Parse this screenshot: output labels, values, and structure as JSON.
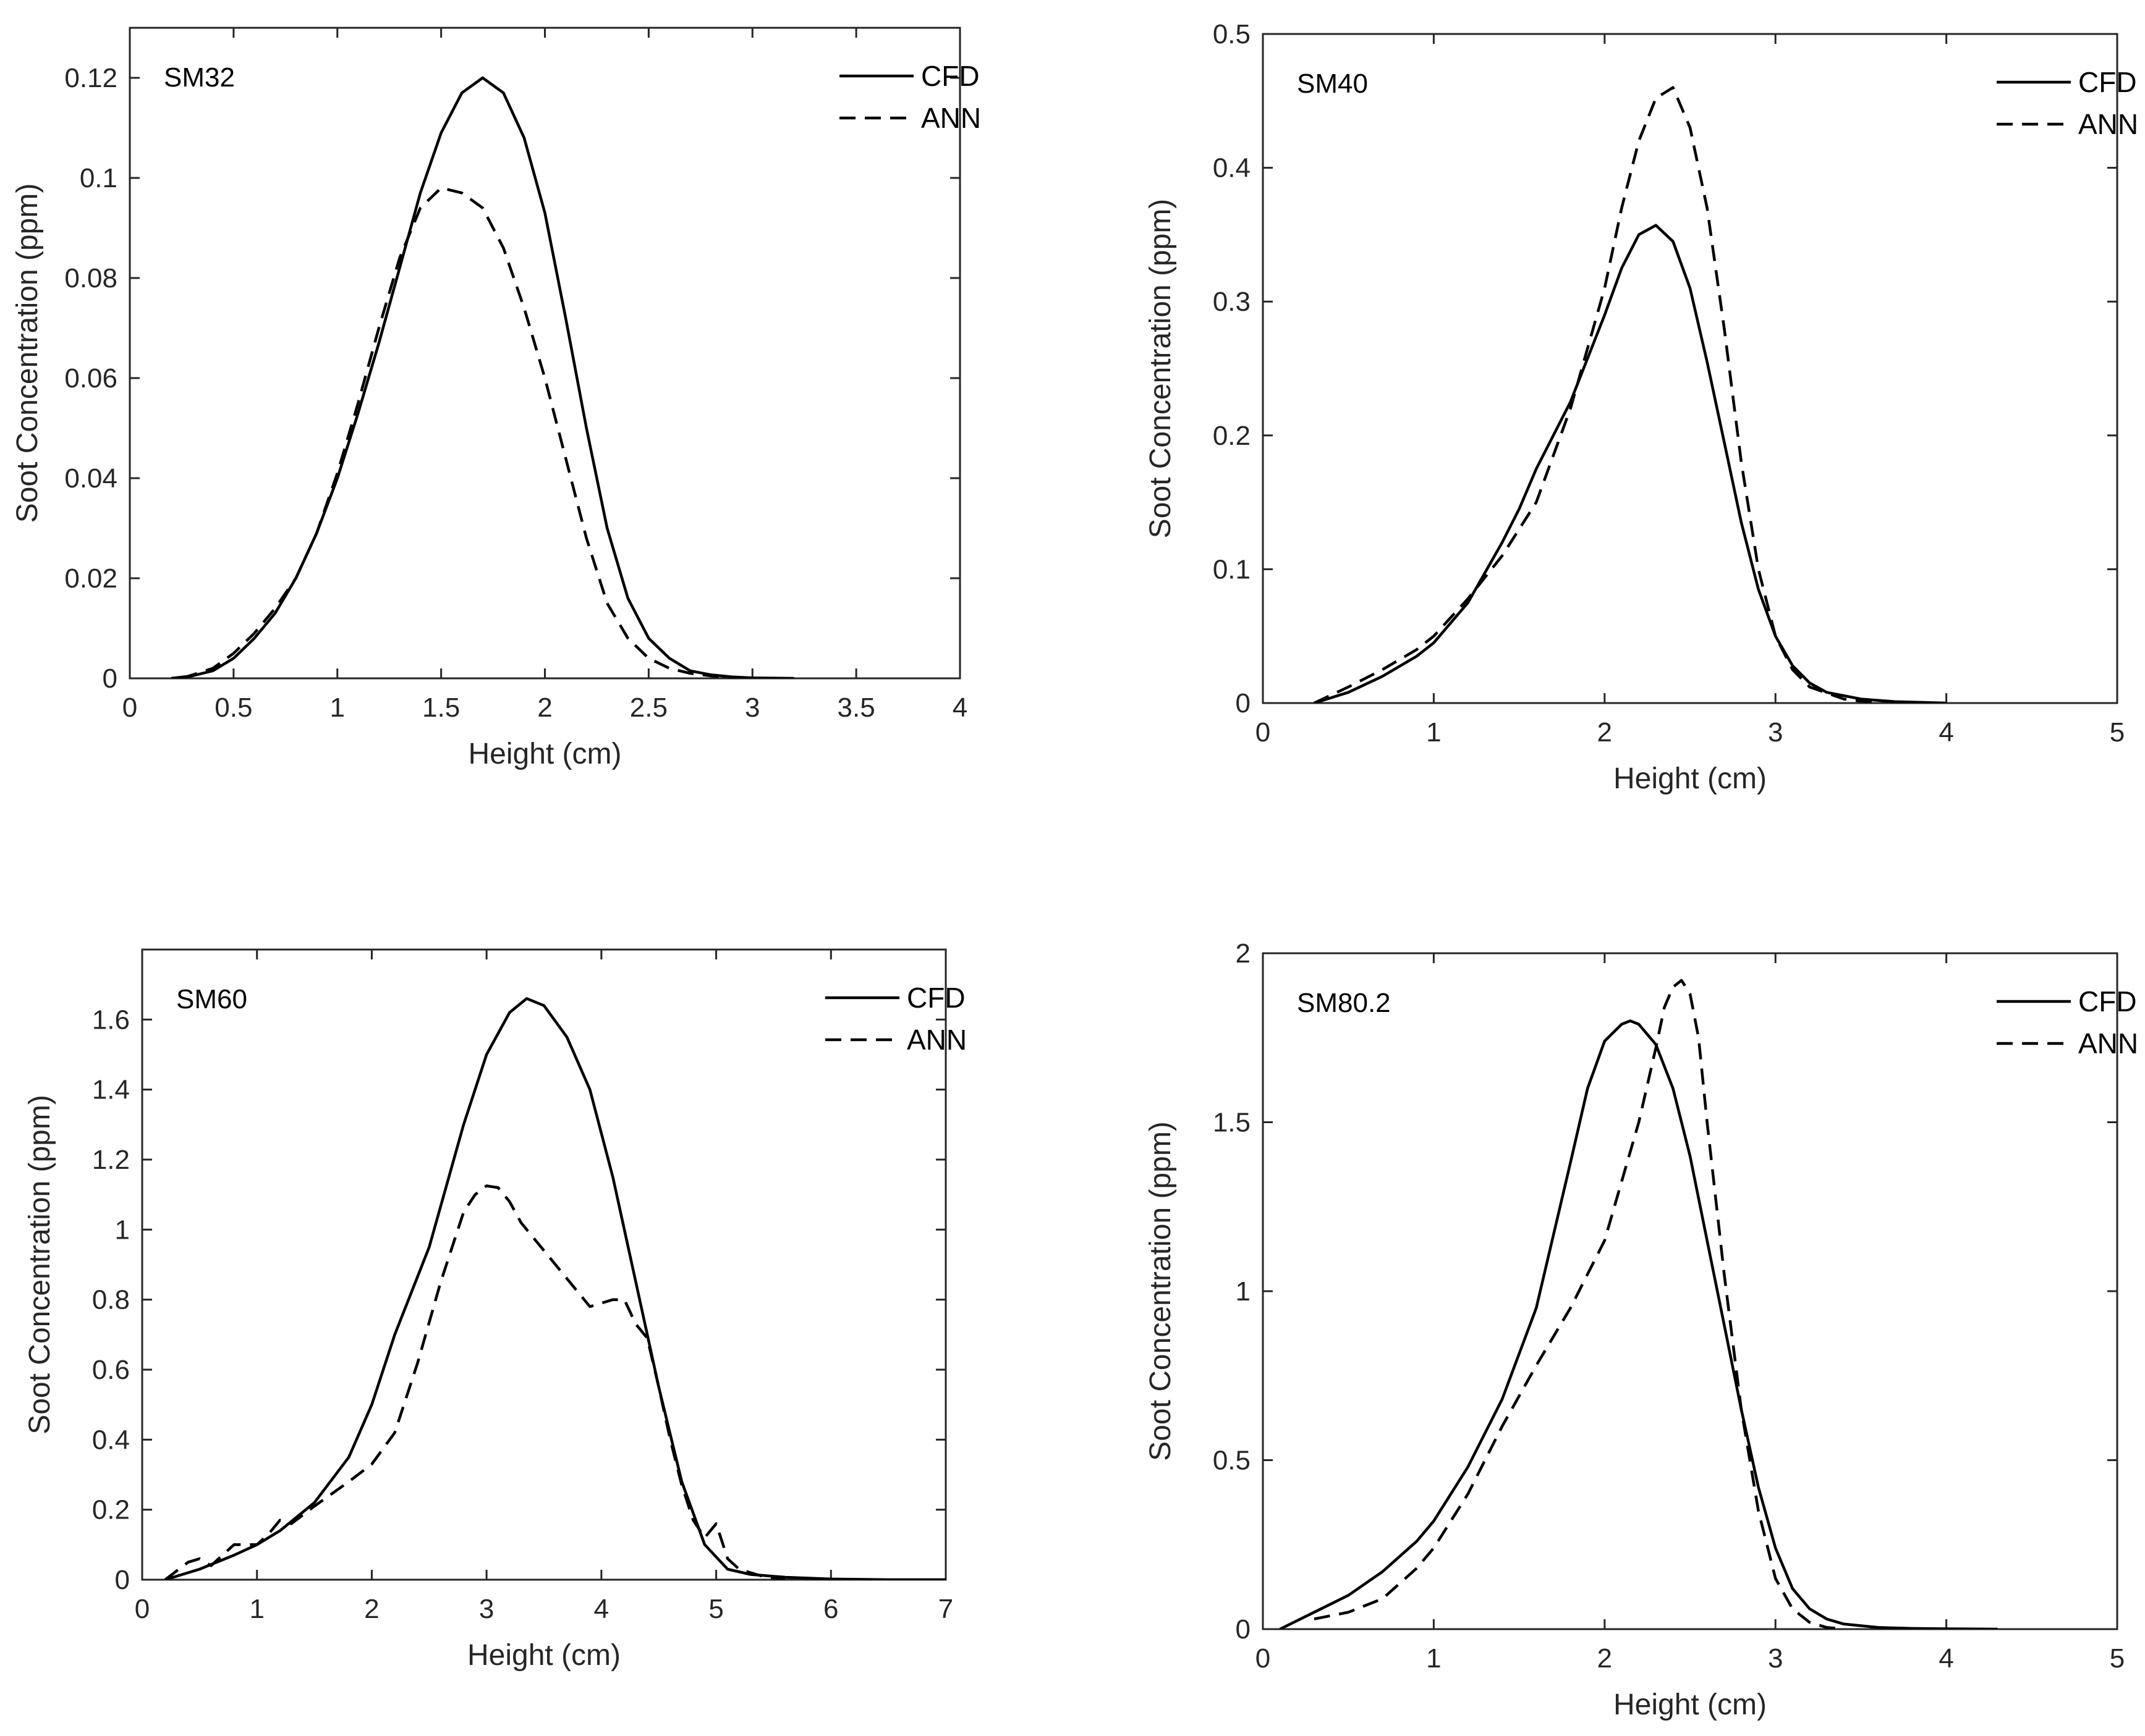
{
  "chart_data": [
    {
      "type": "line",
      "title": "SM32",
      "xlabel": "Height (cm)",
      "ylabel": "Soot Concentration (ppm)",
      "xlim": [
        0,
        4
      ],
      "ylim": [
        0,
        0.13
      ],
      "xticks": [
        0,
        0.5,
        1,
        1.5,
        2,
        2.5,
        3,
        3.5,
        4
      ],
      "xtick_labels": [
        "0",
        "0.5",
        "1",
        "1.5",
        "2",
        "2.5",
        "3",
        "3.5",
        "4"
      ],
      "yticks": [
        0,
        0.02,
        0.04,
        0.06,
        0.08,
        0.1,
        0.12
      ],
      "ytick_labels": [
        "0",
        "0.02",
        "0.04",
        "0.06",
        "0.08",
        "0.1",
        "0.12"
      ],
      "legend": "top-right",
      "series": [
        {
          "name": "CFD",
          "style": "solid",
          "x": [
            0.2,
            0.3,
            0.4,
            0.5,
            0.6,
            0.7,
            0.8,
            0.9,
            1.0,
            1.1,
            1.2,
            1.3,
            1.4,
            1.5,
            1.6,
            1.7,
            1.8,
            1.9,
            2.0,
            2.1,
            2.2,
            2.3,
            2.4,
            2.5,
            2.6,
            2.7,
            2.8,
            2.9,
            3.0,
            3.2
          ],
          "y": [
            0,
            0.0005,
            0.0015,
            0.004,
            0.008,
            0.013,
            0.02,
            0.029,
            0.04,
            0.053,
            0.067,
            0.082,
            0.097,
            0.109,
            0.117,
            0.12,
            0.117,
            0.108,
            0.093,
            0.072,
            0.05,
            0.03,
            0.016,
            0.008,
            0.004,
            0.0015,
            0.0007,
            0.0003,
            0.0001,
            0
          ]
        },
        {
          "name": "ANN",
          "style": "dashed",
          "x": [
            0.25,
            0.4,
            0.5,
            0.6,
            0.7,
            0.8,
            0.9,
            1.0,
            1.1,
            1.2,
            1.3,
            1.4,
            1.5,
            1.6,
            1.7,
            1.8,
            1.9,
            2.0,
            2.1,
            2.2,
            2.3,
            2.4,
            2.5,
            2.6,
            2.7,
            2.8,
            2.9
          ],
          "y": [
            0,
            0.002,
            0.005,
            0.009,
            0.014,
            0.02,
            0.029,
            0.041,
            0.055,
            0.07,
            0.084,
            0.094,
            0.098,
            0.097,
            0.094,
            0.086,
            0.074,
            0.06,
            0.044,
            0.028,
            0.015,
            0.008,
            0.004,
            0.002,
            0.001,
            0.0005,
            0.0002
          ]
        }
      ]
    },
    {
      "type": "line",
      "title": "SM40",
      "xlabel": "Height (cm)",
      "ylabel": "Soot Concentration (ppm)",
      "xlim": [
        0,
        5
      ],
      "ylim": [
        0,
        0.5
      ],
      "xticks": [
        0,
        1,
        2,
        3,
        4,
        5
      ],
      "xtick_labels": [
        "0",
        "1",
        "2",
        "3",
        "4",
        "5"
      ],
      "yticks": [
        0,
        0.1,
        0.2,
        0.3,
        0.4,
        0.5
      ],
      "ytick_labels": [
        "0",
        "0.1",
        "0.2",
        "0.3",
        "0.4",
        "0.5"
      ],
      "legend": "top-right",
      "series": [
        {
          "name": "CFD",
          "style": "solid",
          "x": [
            0.3,
            0.5,
            0.7,
            0.9,
            1.0,
            1.2,
            1.4,
            1.5,
            1.6,
            1.8,
            2.0,
            2.1,
            2.2,
            2.3,
            2.4,
            2.5,
            2.6,
            2.7,
            2.8,
            2.9,
            3.0,
            3.1,
            3.2,
            3.3,
            3.5,
            3.7,
            4.0
          ],
          "y": [
            0,
            0.008,
            0.02,
            0.035,
            0.045,
            0.075,
            0.12,
            0.145,
            0.175,
            0.225,
            0.29,
            0.325,
            0.35,
            0.357,
            0.345,
            0.31,
            0.255,
            0.195,
            0.135,
            0.085,
            0.05,
            0.028,
            0.015,
            0.008,
            0.003,
            0.001,
            0
          ]
        },
        {
          "name": "ANN",
          "style": "dashed",
          "x": [
            0.3,
            0.5,
            0.7,
            0.9,
            1.0,
            1.2,
            1.4,
            1.6,
            1.8,
            2.0,
            2.1,
            2.2,
            2.3,
            2.4,
            2.5,
            2.6,
            2.7,
            2.8,
            2.9,
            3.0,
            3.1,
            3.2,
            3.4,
            3.6
          ],
          "y": [
            0,
            0.012,
            0.025,
            0.04,
            0.05,
            0.078,
            0.11,
            0.15,
            0.22,
            0.31,
            0.37,
            0.42,
            0.452,
            0.46,
            0.43,
            0.37,
            0.28,
            0.18,
            0.1,
            0.05,
            0.025,
            0.012,
            0.003,
            0
          ]
        }
      ]
    },
    {
      "type": "line",
      "title": "SM60",
      "xlabel": "Height (cm)",
      "ylabel": "Soot Concentration (ppm)",
      "xlim": [
        0,
        7
      ],
      "ylim": [
        0,
        1.8
      ],
      "xticks": [
        0,
        1,
        2,
        3,
        4,
        5,
        6,
        7
      ],
      "xtick_labels": [
        "0",
        "1",
        "2",
        "3",
        "4",
        "5",
        "6",
        "7"
      ],
      "yticks": [
        0,
        0.2,
        0.4,
        0.6,
        0.8,
        1,
        1.2,
        1.4,
        1.6
      ],
      "ytick_labels": [
        "0",
        "0.2",
        "0.4",
        "0.6",
        "0.8",
        "1",
        "1.2",
        "1.4",
        "1.6"
      ],
      "legend": "top-right",
      "series": [
        {
          "name": "CFD",
          "style": "solid",
          "x": [
            0.2,
            0.5,
            0.8,
            1.0,
            1.2,
            1.5,
            1.8,
            2.0,
            2.2,
            2.5,
            2.8,
            3.0,
            3.2,
            3.35,
            3.5,
            3.7,
            3.9,
            4.1,
            4.3,
            4.5,
            4.7,
            4.9,
            5.1,
            5.3,
            5.6,
            6.0,
            6.5,
            7.0
          ],
          "y": [
            0,
            0.03,
            0.07,
            0.1,
            0.14,
            0.22,
            0.35,
            0.5,
            0.7,
            0.95,
            1.3,
            1.5,
            1.62,
            1.66,
            1.64,
            1.55,
            1.4,
            1.15,
            0.85,
            0.55,
            0.28,
            0.1,
            0.03,
            0.015,
            0.007,
            0.002,
            0,
            0
          ]
        },
        {
          "name": "ANN",
          "style": "dashed",
          "x": [
            0.2,
            0.4,
            0.5,
            0.6,
            0.7,
            0.8,
            1.0,
            1.1,
            1.2,
            1.3,
            1.5,
            1.8,
            2.0,
            2.2,
            2.4,
            2.6,
            2.8,
            2.9,
            3.0,
            3.1,
            3.2,
            3.3,
            3.4,
            3.6,
            3.8,
            3.9,
            4.0,
            4.1,
            4.2,
            4.3,
            4.4,
            4.5,
            4.6,
            4.7,
            4.8,
            4.9,
            5.0,
            5.1,
            5.2,
            5.4,
            5.6
          ],
          "y": [
            0,
            0.05,
            0.06,
            0.04,
            0.07,
            0.1,
            0.1,
            0.13,
            0.17,
            0.16,
            0.21,
            0.28,
            0.33,
            0.42,
            0.62,
            0.85,
            1.05,
            1.1,
            1.125,
            1.12,
            1.08,
            1.02,
            0.98,
            0.9,
            0.82,
            0.78,
            0.79,
            0.8,
            0.8,
            0.73,
            0.69,
            0.55,
            0.4,
            0.27,
            0.17,
            0.12,
            0.16,
            0.06,
            0.03,
            0.01,
            0
          ]
        }
      ]
    },
    {
      "type": "line",
      "title": "SM80.2",
      "xlabel": "Height (cm)",
      "ylabel": "Soot Concentration (ppm)",
      "xlim": [
        0,
        5
      ],
      "ylim": [
        0,
        2
      ],
      "xticks": [
        0,
        1,
        2,
        3,
        4,
        5
      ],
      "xtick_labels": [
        "0",
        "1",
        "2",
        "3",
        "4",
        "5"
      ],
      "yticks": [
        0,
        0.5,
        1,
        1.5,
        2
      ],
      "ytick_labels": [
        "0",
        "0.5",
        "1",
        "1.5",
        "2"
      ],
      "legend": "top-right",
      "series": [
        {
          "name": "CFD",
          "style": "solid",
          "x": [
            0.1,
            0.3,
            0.5,
            0.7,
            0.9,
            1.0,
            1.2,
            1.4,
            1.6,
            1.8,
            1.9,
            2.0,
            2.1,
            2.15,
            2.2,
            2.3,
            2.4,
            2.5,
            2.6,
            2.7,
            2.8,
            2.9,
            3.0,
            3.1,
            3.2,
            3.3,
            3.4,
            3.6,
            3.8,
            4.0,
            4.3
          ],
          "y": [
            0,
            0.05,
            0.1,
            0.17,
            0.26,
            0.32,
            0.48,
            0.68,
            0.95,
            1.38,
            1.6,
            1.74,
            1.79,
            1.8,
            1.79,
            1.73,
            1.6,
            1.4,
            1.15,
            0.9,
            0.65,
            0.42,
            0.24,
            0.12,
            0.06,
            0.03,
            0.015,
            0.005,
            0.002,
            0.001,
            0
          ]
        },
        {
          "name": "ANN",
          "style": "dashed",
          "x": [
            0.3,
            0.5,
            0.7,
            0.9,
            1.0,
            1.2,
            1.4,
            1.6,
            1.8,
            2.0,
            2.2,
            2.3,
            2.35,
            2.4,
            2.45,
            2.5,
            2.55,
            2.6,
            2.7,
            2.8,
            2.9,
            3.0,
            3.1,
            3.2,
            3.3,
            3.4
          ],
          "y": [
            0.03,
            0.05,
            0.09,
            0.18,
            0.24,
            0.4,
            0.6,
            0.78,
            0.95,
            1.15,
            1.5,
            1.72,
            1.84,
            1.9,
            1.92,
            1.88,
            1.75,
            1.5,
            1.05,
            0.65,
            0.35,
            0.15,
            0.06,
            0.02,
            0.005,
            0
          ]
        }
      ]
    }
  ]
}
